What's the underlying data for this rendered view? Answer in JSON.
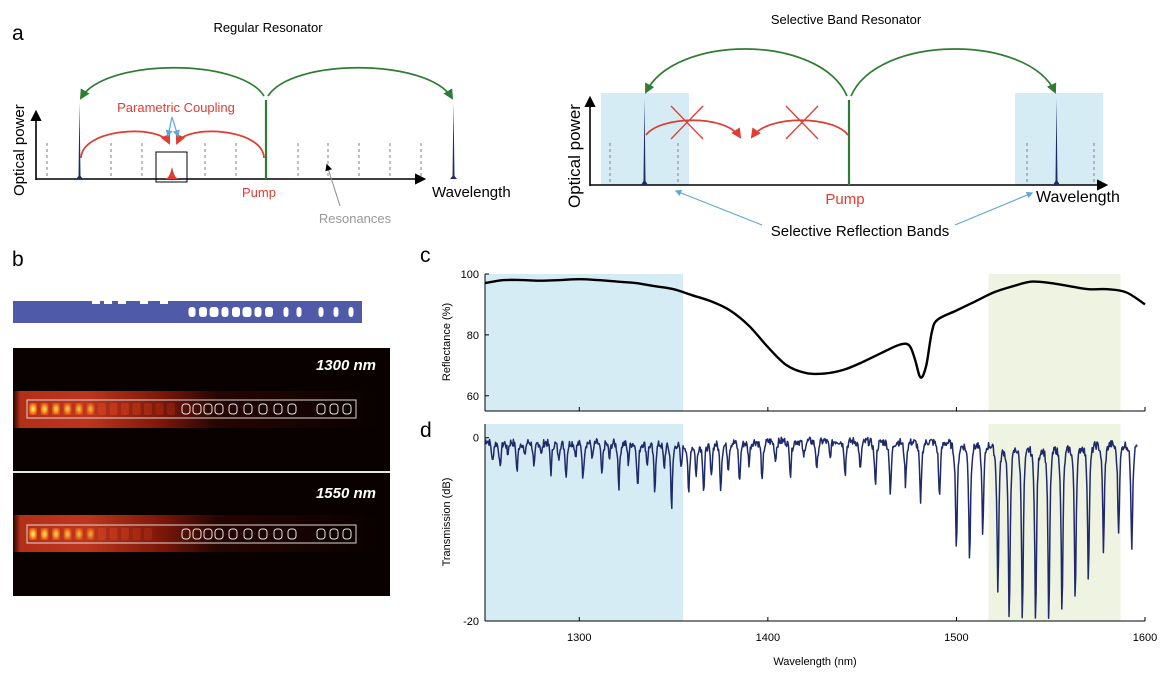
{
  "panels": {
    "a": "a",
    "b": "b",
    "c": "c",
    "d": "d"
  },
  "schematic_regular": {
    "title": "Regular Resonator",
    "ylabel": "Optical power",
    "xlabel": "Wavelength",
    "pump_label": "Pump",
    "coupling_label": "Parametric Coupling",
    "resonances_label": "Resonances"
  },
  "schematic_selective": {
    "title": "Selective Band Resonator",
    "ylabel": "Optical power",
    "xlabel": "Wavelength",
    "pump_label": "Pump",
    "bands_label": "Selective Reflection Bands"
  },
  "field_maps": {
    "label_top": "1300 nm",
    "label_bottom": "1550 nm"
  },
  "colors": {
    "green": "#2e7d32",
    "red": "#e03c31",
    "navy": "#1f2a6b",
    "band_blue": "#d6ecf5",
    "band_green": "#eef3e2",
    "waveguide": "#4f5aa8"
  },
  "chart_data": [
    {
      "type": "line",
      "panel": "c",
      "title": "",
      "xlabel": "",
      "ylabel": "Reflectance (%)",
      "xlim": [
        1250,
        1600
      ],
      "ylim": [
        55,
        100
      ],
      "yticks": [
        60,
        80,
        100
      ],
      "shaded_bands": [
        [
          1250,
          1355
        ],
        [
          1517,
          1587
        ]
      ],
      "x": [
        1250,
        1260,
        1270,
        1280,
        1290,
        1300,
        1310,
        1320,
        1330,
        1340,
        1350,
        1360,
        1370,
        1380,
        1390,
        1400,
        1410,
        1420,
        1430,
        1440,
        1450,
        1460,
        1470,
        1475,
        1478,
        1481,
        1484,
        1487,
        1490,
        1500,
        1510,
        1520,
        1530,
        1540,
        1550,
        1560,
        1570,
        1580,
        1590,
        1600
      ],
      "values": [
        97,
        98,
        98,
        97.8,
        98,
        98.3,
        98,
        97.5,
        97,
        96,
        95,
        93,
        91,
        88,
        83,
        76,
        70,
        67.5,
        67.3,
        68.5,
        71,
        74,
        76.8,
        76.5,
        72,
        66,
        70,
        81,
        85,
        88,
        91,
        94,
        96,
        97.5,
        97,
        96,
        95,
        95,
        94,
        90
      ]
    },
    {
      "type": "line",
      "panel": "d",
      "title": "",
      "xlabel": "Wavelength (nm)",
      "ylabel": "Transmission (dB)",
      "xlim": [
        1250,
        1600
      ],
      "ylim": [
        -20,
        1.5
      ],
      "xticks": [
        1300,
        1400,
        1500,
        1600
      ],
      "yticks": [
        0,
        -20
      ],
      "shaded_bands": [
        [
          1250,
          1355
        ],
        [
          1517,
          1587
        ]
      ],
      "baseline": 0,
      "dips": [
        [
          1254,
          -2.5
        ],
        [
          1258,
          -3.2
        ],
        [
          1262,
          -1.5
        ],
        [
          1267,
          -3.5
        ],
        [
          1271,
          -1.8
        ],
        [
          1276,
          -3.2
        ],
        [
          1280,
          -1.5
        ],
        [
          1285,
          -3.5
        ],
        [
          1289,
          -2
        ],
        [
          1293,
          -4
        ],
        [
          1298,
          -1.6
        ],
        [
          1302,
          -4.2
        ],
        [
          1307,
          -2
        ],
        [
          1312,
          -4
        ],
        [
          1316,
          -2
        ],
        [
          1321,
          -5
        ],
        [
          1326,
          -2.4
        ],
        [
          1331,
          -5.2
        ],
        [
          1336,
          -2.5
        ],
        [
          1340,
          -5.5
        ],
        [
          1345,
          -3
        ],
        [
          1349,
          -7.3
        ],
        [
          1354,
          -3
        ],
        [
          1358,
          -6
        ],
        [
          1362,
          -3.8
        ],
        [
          1366,
          -5.5
        ],
        [
          1370,
          -4
        ],
        [
          1375,
          -5.2
        ],
        [
          1379,
          -3
        ],
        [
          1385,
          -4.6
        ],
        [
          1390,
          -2.5
        ],
        [
          1397,
          -4.6
        ],
        [
          1404,
          -2.2
        ],
        [
          1412,
          -3.8
        ],
        [
          1419,
          -2
        ],
        [
          1426,
          -3.4
        ],
        [
          1433,
          -2
        ],
        [
          1441,
          -3.6
        ],
        [
          1449,
          -3.5
        ],
        [
          1457,
          -5
        ],
        [
          1465,
          -6
        ],
        [
          1473,
          -4.8
        ],
        [
          1481,
          -7
        ],
        [
          1491,
          -6.3
        ],
        [
          1500,
          -11.8
        ],
        [
          1507,
          -13
        ],
        [
          1514,
          -10
        ],
        [
          1522,
          -16.6
        ],
        [
          1528,
          -20
        ],
        [
          1535,
          -19.5
        ],
        [
          1542,
          -20
        ],
        [
          1549,
          -20
        ],
        [
          1556,
          -19
        ],
        [
          1563,
          -17.2
        ],
        [
          1570,
          -15
        ],
        [
          1578,
          -12
        ],
        [
          1586,
          -10
        ],
        [
          1593,
          -11.5
        ]
      ]
    }
  ]
}
